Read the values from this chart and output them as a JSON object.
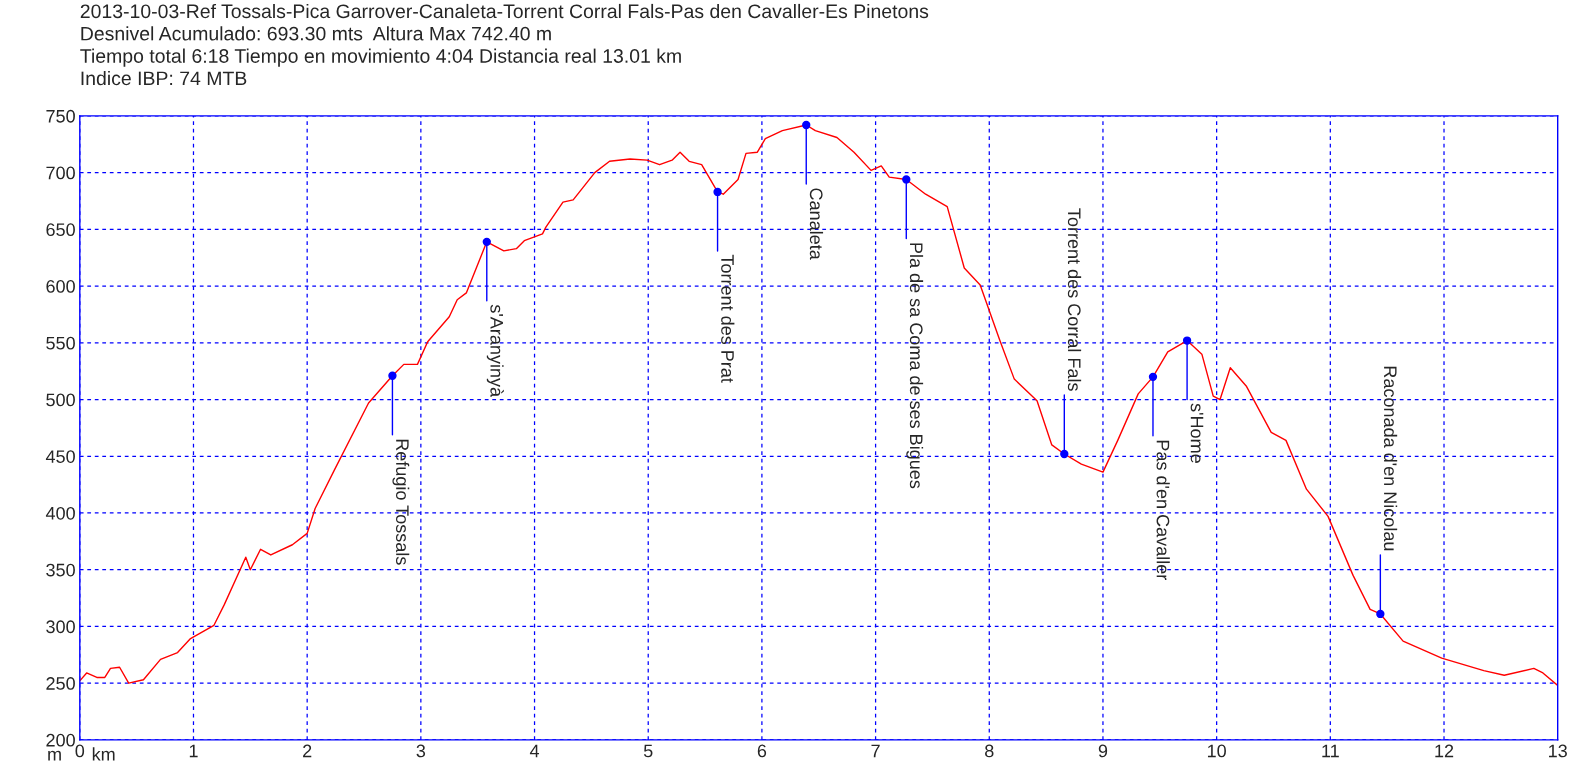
{
  "chart_data": {
    "type": "line",
    "title": "2013-10-03-Ref Tossals-Pica Garrover-Canaleta-Torrent Corral Fals-Pas den Cavaller-Es Pinetons",
    "subtitle": "Desnivel Acumulado: 693.30 mts  Altura Max 742.40 m\nTiempo total 6:18 Tiempo en movimiento 4:04 Distancia real 13.01 km",
    "ylabel": "m",
    "xlabel": "km",
    "series": [
      {
        "color": "#ff0000",
        "x": [
          0,
          0.06,
          0.15,
          0.22,
          0.27,
          0.35,
          0.43,
          0.56,
          0.71,
          0.86,
          0.97,
          1.18,
          1.27,
          1.46,
          1.5,
          1.59,
          1.68,
          1.87,
          2.0,
          2.07,
          2.24,
          2.54,
          2.75,
          2.85,
          2.97,
          3.06,
          3.25,
          3.32,
          3.4,
          3.58,
          3.73,
          3.84,
          3.91,
          4.07,
          4.1,
          4.25,
          4.34,
          4.53,
          4.66,
          4.84,
          4.99,
          5.1,
          5.21,
          5.28,
          5.36,
          5.47,
          5.61,
          5.66,
          5.79,
          5.86,
          5.96,
          6.03,
          6.18,
          6.39,
          6.47,
          6.66,
          6.81,
          6.96,
          7.05,
          7.12,
          7.27,
          7.44,
          7.63,
          7.78,
          7.92,
          8.09,
          8.22,
          8.42,
          8.55,
          8.66,
          8.81,
          9.0,
          9.13,
          9.31,
          9.44,
          9.57,
          9.74,
          9.87,
          9.97,
          10.03,
          10.12,
          10.26,
          10.48,
          10.61,
          10.79,
          10.98,
          11.2,
          11.35,
          11.44,
          11.64,
          11.98,
          12.35,
          12.53,
          12.79,
          12.87,
          13.0
        ],
        "values": [
          252,
          259,
          255,
          255,
          263,
          264,
          250,
          253,
          271,
          277,
          289,
          301,
          319,
          361,
          350,
          368,
          363,
          372,
          382,
          404,
          438,
          497,
          521,
          531,
          531,
          551,
          573,
          588,
          594,
          639,
          631,
          633,
          640,
          646,
          652,
          674,
          676,
          700,
          710,
          712,
          711,
          707,
          711,
          718,
          710,
          707,
          683,
          681,
          694,
          717,
          718,
          730,
          737,
          742,
          737,
          731,
          718,
          702,
          706,
          696,
          694,
          681,
          670,
          616,
          601,
          553,
          518,
          499,
          460,
          452,
          443,
          436,
          464,
          505,
          520,
          542,
          552,
          540,
          503,
          500,
          528,
          512,
          471,
          464,
          421,
          397,
          345,
          315,
          311,
          287,
          272,
          261,
          257,
          263,
          259,
          248
        ]
      }
    ],
    "annotations": [
      "Indice IBP: 74 MTB",
      {
        "text": "Refugio Tossals",
        "x": 2.75,
        "y": 521
      },
      {
        "text": "s'Aranyinyà",
        "x": 3.58,
        "y": 639
      },
      {
        "text": "Torrent des Prat",
        "x": 5.61,
        "y": 683
      },
      {
        "text": "Canaleta",
        "x": 6.39,
        "y": 742
      },
      {
        "text": "Pla de sa Coma de ses Bigues",
        "x": 7.27,
        "y": 694
      },
      {
        "text": "Torrent des Corral Fals",
        "x": 8.66,
        "y": 452
      },
      {
        "text": "Pas d'en Cavaller",
        "x": 9.44,
        "y": 520
      },
      {
        "text": "s'Home",
        "x": 9.74,
        "y": 552
      },
      {
        "text": "Raconada d'en Nicolau",
        "x": 11.44,
        "y": 311
      }
    ],
    "xlim": [
      0,
      13
    ],
    "xticks": [
      0,
      1,
      2,
      3,
      4,
      5,
      6,
      7,
      8,
      9,
      10,
      11,
      12,
      13
    ],
    "ylim": [
      200,
      750
    ],
    "yticks": [
      200,
      250,
      300,
      350,
      400,
      450,
      500,
      550,
      600,
      650,
      700,
      750
    ],
    "grid": true,
    "line_style": "solid"
  }
}
